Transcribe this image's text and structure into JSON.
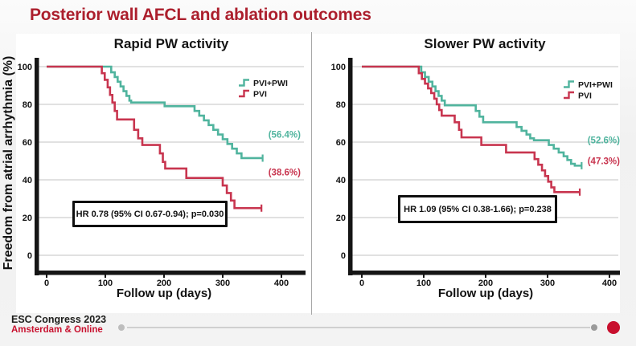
{
  "slide": {
    "title": "Posterior wall AFCL and ablation outcomes"
  },
  "colors": {
    "title_red": "#AC1F2D",
    "footer_red": "#C8102E",
    "pvi_pwi_teal": "#50B49E",
    "pvi_crimson": "#C8354F",
    "grid_gray": "#cfcfcf",
    "axis_black": "#151515"
  },
  "y_axis_title": "Freedom from atrial arrhythmia (%)",
  "footer": {
    "line1": "ESC Congress 2023",
    "line2": "Amsterdam & Online"
  },
  "chart_data": [
    {
      "type": "line",
      "subtype": "kaplan-meier-step",
      "title": "Rapid PW activity",
      "xlabel": "Follow up (days)",
      "ylabel": "Freedom from atrial arrhythmia (%)",
      "xlim": [
        0,
        440
      ],
      "ylim": [
        0,
        107
      ],
      "xticks": [
        0,
        100,
        200,
        300,
        400
      ],
      "yticks": [
        0,
        20,
        40,
        60,
        80,
        100
      ],
      "grid": true,
      "legend_position": "top-right",
      "annotation": "HR 0.78 (95% CI 0.67-0.94); p=0.030",
      "series": [
        {
          "name": "PVI+PWI",
          "color": "#50B49E",
          "pct_label": "(56.4%)",
          "pct_label_anchor": 64,
          "points": [
            [
              0,
              100
            ],
            [
              105,
              100
            ],
            [
              110,
              97
            ],
            [
              116,
              94.5
            ],
            [
              121,
              92
            ],
            [
              126,
              89.5
            ],
            [
              131,
              87
            ],
            [
              136,
              84.5
            ],
            [
              141,
              82
            ],
            [
              144,
              81
            ],
            [
              199,
              81
            ],
            [
              201,
              79
            ],
            [
              246,
              79
            ],
            [
              252,
              76.5
            ],
            [
              260,
              74
            ],
            [
              268,
              71.5
            ],
            [
              276,
              69
            ],
            [
              284,
              66.5
            ],
            [
              292,
              64
            ],
            [
              300,
              61.5
            ],
            [
              308,
              59
            ],
            [
              316,
              56.5
            ],
            [
              324,
              54
            ],
            [
              332,
              51.5
            ],
            [
              368,
              51.5
            ]
          ]
        },
        {
          "name": "PVI",
          "color": "#C8354F",
          "pct_label": "(38.6%)",
          "pct_label_anchor": 44,
          "points": [
            [
              0,
              100
            ],
            [
              90,
              100
            ],
            [
              94,
              96.5
            ],
            [
              99,
              93
            ],
            [
              104,
              89
            ],
            [
              108,
              85
            ],
            [
              112,
              81
            ],
            [
              116,
              76.5
            ],
            [
              120,
              72
            ],
            [
              141,
              72
            ],
            [
              149,
              66.5
            ],
            [
              156,
              62
            ],
            [
              163,
              58.5
            ],
            [
              188,
              58.5
            ],
            [
              193,
              54
            ],
            [
              198,
              49.5
            ],
            [
              202,
              46
            ],
            [
              235,
              46
            ],
            [
              238,
              41
            ],
            [
              296,
              41
            ],
            [
              300,
              37
            ],
            [
              307,
              33
            ],
            [
              314,
              29
            ],
            [
              320,
              25
            ],
            [
              366,
              25
            ]
          ]
        }
      ]
    },
    {
      "type": "line",
      "subtype": "kaplan-meier-step",
      "title": "Slower PW activity",
      "xlabel": "Follow up (days)",
      "ylabel": "Freedom from atrial arrhythmia (%)",
      "xlim": [
        0,
        440
      ],
      "ylim": [
        0,
        107
      ],
      "xticks": [
        0,
        100,
        200,
        300,
        400
      ],
      "yticks": [
        0,
        20,
        40,
        60,
        80,
        100
      ],
      "grid": true,
      "legend_position": "top-right",
      "annotation": "HR 1.09 (95% CI 0.38-1.66); p=0.238",
      "series": [
        {
          "name": "PVI+PWI",
          "color": "#50B49E",
          "pct_label": "(52.6%)",
          "pct_label_anchor": 61,
          "points": [
            [
              0,
              100
            ],
            [
              90,
              100
            ],
            [
              96,
              97
            ],
            [
              102,
              94.5
            ],
            [
              108,
              92
            ],
            [
              114,
              89.5
            ],
            [
              119,
              87
            ],
            [
              124,
              84.5
            ],
            [
              129,
              82
            ],
            [
              134,
              79.5
            ],
            [
              180,
              79.5
            ],
            [
              184,
              76.5
            ],
            [
              190,
              73.5
            ],
            [
              196,
              70.5
            ],
            [
              242,
              70.5
            ],
            [
              250,
              68
            ],
            [
              258,
              66
            ],
            [
              266,
              64
            ],
            [
              272,
              62
            ],
            [
              278,
              61
            ],
            [
              298,
              61
            ],
            [
              302,
              58.5
            ],
            [
              310,
              56.5
            ],
            [
              318,
              54.5
            ],
            [
              326,
              52.5
            ],
            [
              332,
              50.5
            ],
            [
              338,
              48.5
            ],
            [
              344,
              47.5
            ],
            [
              355,
              47.5
            ]
          ]
        },
        {
          "name": "PVI",
          "color": "#C8354F",
          "pct_label": "(47.3%)",
          "pct_label_anchor": 50,
          "points": [
            [
              0,
              100
            ],
            [
              87,
              100
            ],
            [
              92,
              96.5
            ],
            [
              97,
              93.5
            ],
            [
              102,
              91
            ],
            [
              107,
              88.5
            ],
            [
              112,
              86
            ],
            [
              117,
              83
            ],
            [
              121,
              80
            ],
            [
              125,
              77
            ],
            [
              129,
              74
            ],
            [
              146,
              74
            ],
            [
              150,
              70.5
            ],
            [
              157,
              66.5
            ],
            [
              161,
              62.5
            ],
            [
              190,
              62.5
            ],
            [
              193,
              58.5
            ],
            [
              228,
              58.5
            ],
            [
              233,
              54.5
            ],
            [
              275,
              54.5
            ],
            [
              279,
              51
            ],
            [
              285,
              48
            ],
            [
              291,
              45
            ],
            [
              296,
              42
            ],
            [
              301,
              39
            ],
            [
              306,
              36
            ],
            [
              311,
              33.5
            ],
            [
              352,
              33.5
            ]
          ]
        }
      ]
    }
  ]
}
